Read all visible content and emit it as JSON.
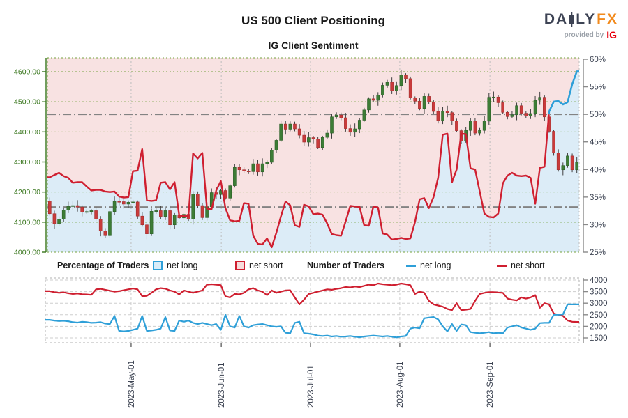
{
  "header": {
    "title": "US 500 Client Positioning",
    "subtitle": "IG Client Sentiment",
    "logo": {
      "brand_left": "DA",
      "brand_right": "LY",
      "brand_fx": "FX",
      "candle_icon": "candlestick-icon",
      "provided_by": "provided by",
      "ig": "IG"
    }
  },
  "legend": {
    "pct_label": "Percentage of Traders",
    "num_label": "Number of Traders",
    "net_long": "net long",
    "net_short": "net short"
  },
  "colors": {
    "long_blue": "#2e9fd8",
    "short_red": "#cf1f30",
    "long_fill": "#dcecf7",
    "short_fill": "#f8e2e2",
    "axis_green": "#37751b",
    "grid_green": "#74a23e",
    "grid_gray": "#bdbdbd",
    "ref_gray": "#838383",
    "candle_up": "#3d7d36",
    "candle_up_edge": "#2c5f27",
    "candle_down": "#c93b3b",
    "candle_down_edge": "#a32e2e",
    "wick": "#3f3f3f",
    "label_dark": "#3a4150",
    "sub_grid": "#cdcdcd",
    "sub_border": "#b0b0b0"
  },
  "chart_data": [
    {
      "type": "candlestick+line",
      "title": "US 500 daily price with IG client sentiment (net long %)",
      "price_axis": {
        "min": 4000,
        "max": 4600,
        "ticks": [
          4600,
          4500,
          4400,
          4300,
          4200,
          4100,
          4000
        ],
        "tick_labels": [
          "4600.00",
          "4500.00",
          "4400.00",
          "4300.00",
          "4200.00",
          "4100.00",
          "4000.00"
        ]
      },
      "pct_axis": {
        "min": 25,
        "max": 60,
        "ticks": [
          60,
          55,
          50,
          45,
          40,
          35,
          30,
          25
        ],
        "tick_labels": [
          "60%",
          "55%",
          "50%",
          "45%",
          "40%",
          "35%",
          "30%",
          "25%"
        ]
      },
      "reference_lines_pct": [
        50,
        33.2
      ],
      "x_tick_labels": [
        "2023-May-01",
        "2023-Jun-01",
        "2023-Jul-01",
        "2023-Aug-01",
        "2023-Sep-01"
      ],
      "x_tick_day_index": [
        17.6,
        37.1,
        56.4,
        75.7,
        95.2
      ],
      "first_open": 4170,
      "wick_up": [
        10,
        16,
        6,
        12,
        8,
        18,
        5,
        9,
        14,
        7
      ],
      "wick_dn": [
        8,
        6,
        14,
        10,
        18,
        5,
        12,
        7,
        9,
        15
      ],
      "closes": [
        4128,
        4095,
        4110,
        4140,
        4152,
        4155,
        4150,
        4133,
        4135,
        4138,
        4110,
        4071,
        4055,
        4135,
        4169,
        4168,
        4160,
        4166,
        4167,
        4120,
        4091,
        4061,
        4136,
        4138,
        4119,
        4138,
        4091,
        4124,
        4114,
        4126,
        4110,
        4193,
        4155,
        4115,
        4151,
        4198,
        4192,
        4205,
        4180,
        4221,
        4282,
        4274,
        4270,
        4268,
        4294,
        4267,
        4294,
        4299,
        4339,
        4372,
        4426,
        4409,
        4426,
        4410,
        4389,
        4366,
        4381,
        4376,
        4348,
        4382,
        4396,
        4450,
        4456,
        4447,
        4411,
        4399,
        4410,
        4439,
        4473,
        4510,
        4505,
        4522,
        4555,
        4565,
        4536,
        4554,
        4589,
        4577,
        4513,
        4502,
        4478,
        4518,
        4499,
        4468,
        4438,
        4469,
        4464,
        4437,
        4404,
        4370,
        4405,
        4437,
        4396,
        4405,
        4436,
        4515,
        4516,
        4497,
        4465,
        4451,
        4457,
        4487,
        4462,
        4453,
        4461,
        4505,
        4515,
        4450,
        4402,
        4330,
        4274,
        4288,
        4320,
        4274,
        4299
      ],
      "sentiment_net_long_pct": [
        38.6,
        39.0,
        39.4,
        38.8,
        38.5,
        37.6,
        37.7,
        37.7,
        36.9,
        36.2,
        36.3,
        36.3,
        36.0,
        35.9,
        36.0,
        35.1,
        34.9,
        35.0,
        39.7,
        39.8,
        43.7,
        34.4,
        34.3,
        34.4,
        37.6,
        37.7,
        36.4,
        37.7,
        31.7,
        31.5,
        31.6,
        42.9,
        42.0,
        43.0,
        32.9,
        32.8,
        36.2,
        37.9,
        33.0,
        30.8,
        30.6,
        30.7,
        33.9,
        33.8,
        28.0,
        26.5,
        26.4,
        27.5,
        25.9,
        28.5,
        31.5,
        34.2,
        33.5,
        29.9,
        29.6,
        33.6,
        33.3,
        31.9,
        32.0,
        31.8,
        30.2,
        28.3,
        28.1,
        28.0,
        30.6,
        33.4,
        33.3,
        33.2,
        29.9,
        29.8,
        33.3,
        33.1,
        28.4,
        28.2,
        27.3,
        27.4,
        27.6,
        27.4,
        27.5,
        30.5,
        34.6,
        34.8,
        33.0,
        35.0,
        38.5,
        46.3,
        46.5,
        37.7,
        40.0,
        46.5,
        46.4,
        40.2,
        40.0,
        36.0,
        32.0,
        31.4,
        31.3,
        32.0,
        37.5,
        38.9,
        39.4,
        38.9,
        38.8,
        38.9,
        38.5,
        33.8,
        40.3,
        40.5,
        50.5,
        52.3,
        52.4,
        51.8,
        52.2,
        55.5,
        57.8
      ]
    },
    {
      "type": "line",
      "title": "Number of Traders",
      "axis": {
        "min": 1500,
        "max": 4000,
        "ticks": [
          4000,
          3500,
          3000,
          2500,
          2000,
          1500
        ],
        "tick_labels": [
          "4000",
          "3500",
          "3000",
          "2500",
          "2000",
          "1500"
        ]
      },
      "series": [
        {
          "name": "net short",
          "color_key": "short_red",
          "values": [
            3520,
            3480,
            3450,
            3470,
            3430,
            3400,
            3420,
            3390,
            3380,
            3360,
            3600,
            3620,
            3580,
            3540,
            3500,
            3520,
            3560,
            3600,
            3640,
            3600,
            3300,
            3320,
            3450,
            3600,
            3650,
            3630,
            3550,
            3500,
            3380,
            3550,
            3500,
            3450,
            3500,
            3550,
            3800,
            3820,
            3800,
            3780,
            3300,
            3250,
            3400,
            3380,
            3450,
            3600,
            3650,
            3550,
            3500,
            3350,
            3550,
            3450,
            3500,
            3550,
            3560,
            3250,
            2950,
            3150,
            3400,
            3450,
            3500,
            3550,
            3600,
            3580,
            3620,
            3650,
            3700,
            3680,
            3720,
            3700,
            3750,
            3800,
            3780,
            3850,
            3820,
            3800,
            3780,
            3800,
            3850,
            3820,
            3780,
            3400,
            3500,
            3450,
            3100,
            2950,
            2900,
            2850,
            2750,
            2700,
            3000,
            2700,
            2720,
            2750,
            3100,
            3400,
            3450,
            3480,
            3480,
            3460,
            3450,
            3200,
            3150,
            3120,
            3250,
            3200,
            3250,
            3350,
            2800,
            3000,
            2950,
            2550,
            2500,
            2450,
            2250,
            2200,
            2190
          ]
        },
        {
          "name": "net long",
          "color_key": "long_blue",
          "values": [
            2280,
            2250,
            2230,
            2240,
            2220,
            2180,
            2160,
            2200,
            2180,
            2150,
            2160,
            2180,
            2120,
            2100,
            2450,
            1800,
            1780,
            1800,
            1850,
            1900,
            2450,
            1800,
            1820,
            1850,
            1900,
            2400,
            1820,
            1800,
            2250,
            2200,
            2250,
            2150,
            2100,
            2150,
            2100,
            2050,
            2100,
            1850,
            2500,
            2000,
            1950,
            2450,
            2000,
            1950,
            2050,
            2080,
            2100,
            2050,
            2000,
            1980,
            2000,
            1720,
            1700,
            2150,
            2200,
            1700,
            1680,
            1650,
            1600,
            1580,
            1600,
            1560,
            1580,
            1550,
            1560,
            1580,
            1550,
            1530,
            1560,
            1580,
            1600,
            1580,
            1560,
            1580,
            1550,
            1520,
            1560,
            1580,
            1900,
            1950,
            1920,
            2350,
            2380,
            2400,
            2300,
            2000,
            1780,
            2100,
            1800,
            2080,
            2050,
            1750,
            1720,
            1700,
            1720,
            1750,
            1700,
            1720,
            1700,
            1950,
            2000,
            2050,
            1950,
            1900,
            1850,
            1900,
            2140,
            2150,
            2150,
            2500,
            2500,
            2520,
            2950,
            2950,
            2950
          ]
        }
      ]
    }
  ]
}
